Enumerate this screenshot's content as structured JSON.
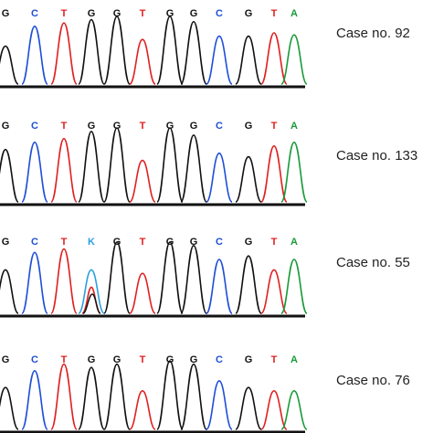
{
  "base_colors": {
    "A": "#1a9a3a",
    "C": "#1f4fd6",
    "G": "#111111",
    "T": "#e02020",
    "K": "#2aa0e0"
  },
  "panels": [
    {
      "label": "Case no. 92",
      "bases": [
        "G",
        "C",
        "T",
        "G",
        "G",
        "T",
        "G",
        "G",
        "C",
        "G",
        "T",
        "A"
      ]
    },
    {
      "label": "Case no. 133",
      "bases": [
        "G",
        "C",
        "T",
        "G",
        "G",
        "T",
        "G",
        "G",
        "C",
        "G",
        "T",
        "A"
      ]
    },
    {
      "label": "Case no. 55",
      "bases": [
        "G",
        "C",
        "T",
        "K",
        "G",
        "T",
        "G",
        "G",
        "C",
        "G",
        "T",
        "A"
      ]
    },
    {
      "label": "Case no. 76",
      "bases": [
        "G",
        "C",
        "T",
        "G",
        "G",
        "T",
        "G",
        "G",
        "C",
        "G",
        "T",
        "A"
      ]
    }
  ]
}
